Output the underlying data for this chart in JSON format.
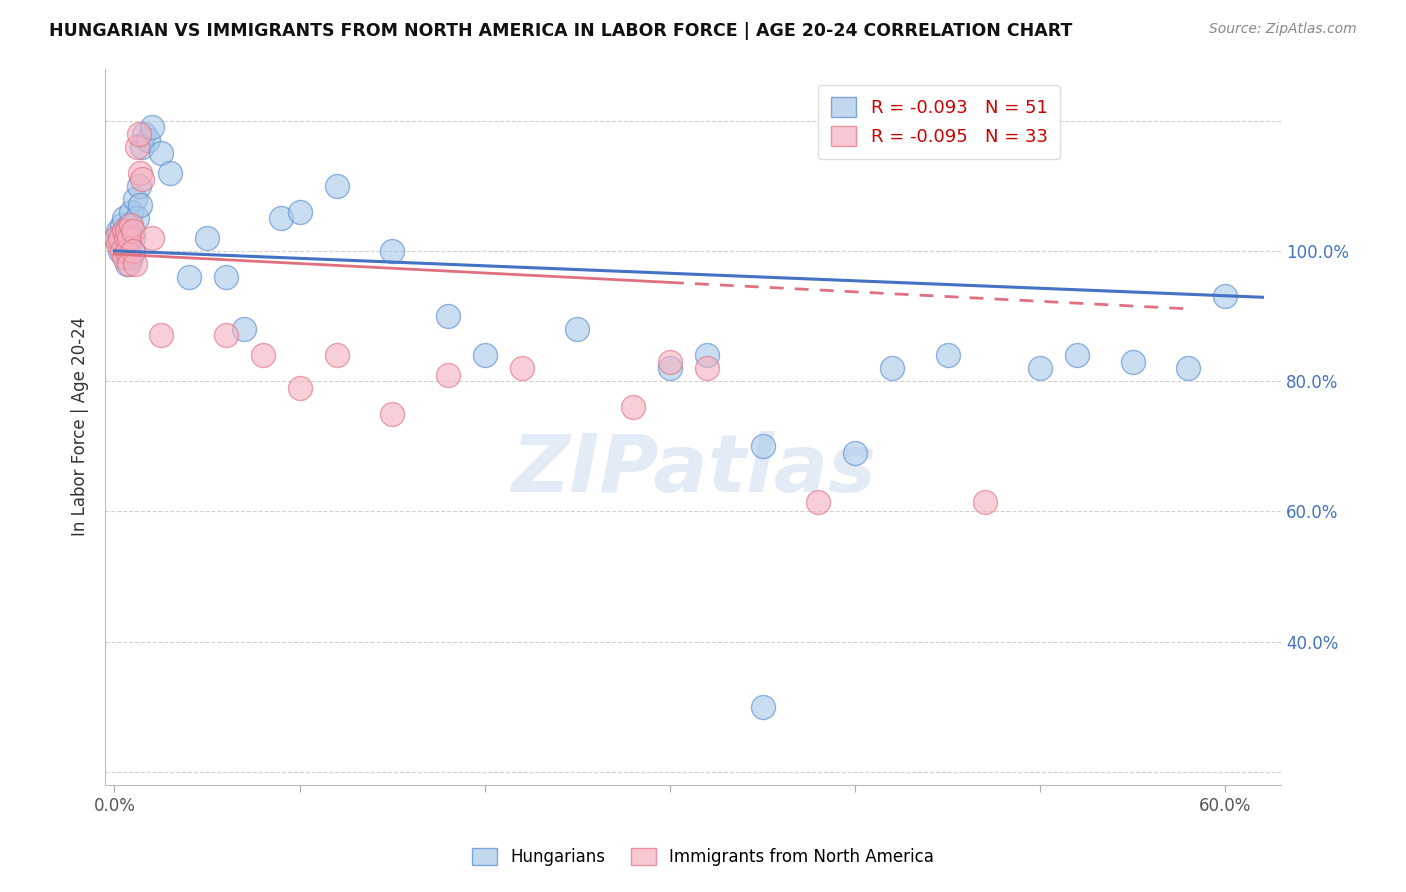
{
  "title": "HUNGARIAN VS IMMIGRANTS FROM NORTH AMERICA IN LABOR FORCE | AGE 20-24 CORRELATION CHART",
  "source": "Source: ZipAtlas.com",
  "ylabel": "In Labor Force | Age 20-24",
  "blue_R": -0.093,
  "blue_N": 51,
  "pink_R": -0.095,
  "pink_N": 33,
  "blue_color": "#a8c8e8",
  "pink_color": "#f4b0c0",
  "blue_edge_color": "#5588cc",
  "pink_edge_color": "#e07080",
  "blue_line_color": "#4472c4",
  "pink_line_color": "#e07080",
  "xlim_min": -0.005,
  "xlim_max": 0.63,
  "ylim_min": -0.02,
  "ylim_max": 1.08,
  "blue_intercept": 0.8,
  "blue_slope": -0.115,
  "pink_intercept": 0.795,
  "pink_slope": -0.145,
  "blue_x": [
    0.001,
    0.002,
    0.003,
    0.003,
    0.004,
    0.004,
    0.005,
    0.005,
    0.006,
    0.006,
    0.007,
    0.007,
    0.008,
    0.008,
    0.009,
    0.009,
    0.01,
    0.01,
    0.011,
    0.012,
    0.013,
    0.014,
    0.015,
    0.016,
    0.018,
    0.02,
    0.025,
    0.03,
    0.04,
    0.05,
    0.06,
    0.07,
    0.09,
    0.1,
    0.12,
    0.15,
    0.18,
    0.2,
    0.25,
    0.3,
    0.32,
    0.35,
    0.4,
    0.42,
    0.45,
    0.5,
    0.52,
    0.55,
    0.58,
    0.6,
    0.35
  ],
  "blue_y": [
    0.82,
    0.83,
    0.82,
    0.8,
    0.81,
    0.84,
    0.85,
    0.82,
    0.8,
    0.83,
    0.78,
    0.81,
    0.82,
    0.84,
    0.86,
    0.79,
    0.82,
    0.8,
    0.88,
    0.85,
    0.9,
    0.87,
    0.96,
    0.98,
    0.97,
    0.99,
    0.95,
    0.92,
    0.76,
    0.82,
    0.76,
    0.68,
    0.85,
    0.86,
    0.9,
    0.8,
    0.7,
    0.64,
    0.68,
    0.62,
    0.64,
    0.5,
    0.49,
    0.62,
    0.64,
    0.62,
    0.64,
    0.63,
    0.62,
    0.73,
    0.1
  ],
  "pink_x": [
    0.001,
    0.002,
    0.003,
    0.004,
    0.005,
    0.005,
    0.006,
    0.007,
    0.007,
    0.008,
    0.008,
    0.009,
    0.01,
    0.01,
    0.011,
    0.012,
    0.013,
    0.014,
    0.015,
    0.02,
    0.025,
    0.06,
    0.08,
    0.1,
    0.12,
    0.15,
    0.18,
    0.22,
    0.28,
    0.3,
    0.32,
    0.38,
    0.47
  ],
  "pink_y": [
    0.82,
    0.81,
    0.82,
    0.8,
    0.83,
    0.79,
    0.82,
    0.83,
    0.8,
    0.78,
    0.82,
    0.84,
    0.83,
    0.8,
    0.78,
    0.96,
    0.98,
    0.92,
    0.91,
    0.82,
    0.67,
    0.67,
    0.64,
    0.59,
    0.64,
    0.55,
    0.61,
    0.62,
    0.56,
    0.63,
    0.62,
    0.415,
    0.415
  ]
}
